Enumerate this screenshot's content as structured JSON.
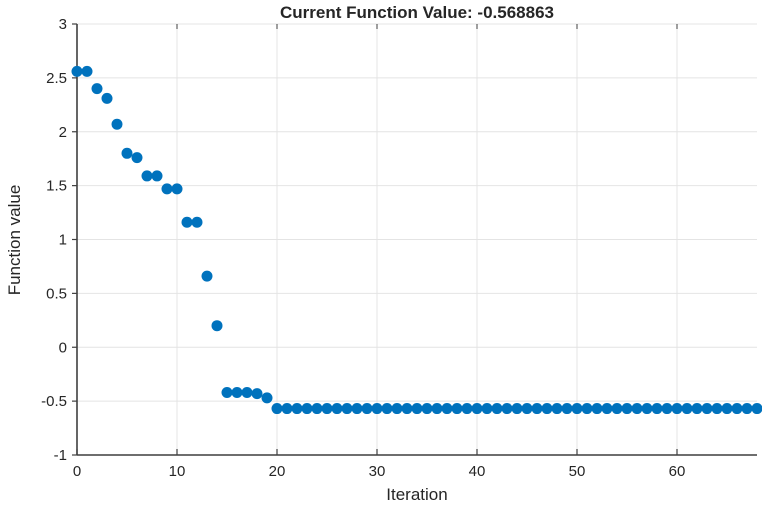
{
  "chart_data": {
    "type": "scatter",
    "title": "Current Function Value: -0.568863",
    "current_function_value": -0.568863,
    "xlabel": "Iteration",
    "ylabel": "Function value",
    "xlim": [
      0,
      68
    ],
    "ylim": [
      -1,
      3
    ],
    "xticks": [
      0,
      10,
      20,
      30,
      40,
      50,
      60
    ],
    "yticks": [
      -1,
      -0.5,
      0,
      0.5,
      1,
      1.5,
      2,
      2.5,
      3
    ],
    "grid": true,
    "legend": "none",
    "marker": {
      "shape": "circle",
      "radius_px": 5.5,
      "color": "#0072BD"
    },
    "colors": {
      "marker": "#0072BD",
      "axis_line": "#3f3f3f",
      "grid_line": "#e4e4e4",
      "text": "#262626",
      "background": "#ffffff"
    },
    "x": [
      0,
      1,
      2,
      3,
      4,
      5,
      6,
      7,
      8,
      9,
      10,
      11,
      12,
      13,
      14,
      15,
      16,
      17,
      18,
      19,
      20,
      21,
      22,
      23,
      24,
      25,
      26,
      27,
      28,
      29,
      30,
      31,
      32,
      33,
      34,
      35,
      36,
      37,
      38,
      39,
      40,
      41,
      42,
      43,
      44,
      45,
      46,
      47,
      48,
      49,
      50,
      51,
      52,
      53,
      54,
      55,
      56,
      57,
      58,
      59,
      60,
      61,
      62,
      63,
      64,
      65,
      66,
      67,
      68
    ],
    "y": [
      2.56,
      2.56,
      2.4,
      2.31,
      2.07,
      1.8,
      1.76,
      1.59,
      1.59,
      1.47,
      1.47,
      1.16,
      1.16,
      0.66,
      0.2,
      -0.42,
      -0.42,
      -0.42,
      -0.43,
      -0.47,
      -0.5689,
      -0.5689,
      -0.5689,
      -0.5689,
      -0.5689,
      -0.5689,
      -0.5689,
      -0.5689,
      -0.5689,
      -0.5689,
      -0.5689,
      -0.5689,
      -0.5689,
      -0.5689,
      -0.5689,
      -0.5689,
      -0.5689,
      -0.5689,
      -0.5689,
      -0.5689,
      -0.5689,
      -0.5689,
      -0.5689,
      -0.5689,
      -0.5689,
      -0.5689,
      -0.5689,
      -0.5689,
      -0.5689,
      -0.5689,
      -0.5689,
      -0.5689,
      -0.5689,
      -0.5689,
      -0.5689,
      -0.5689,
      -0.5689,
      -0.5689,
      -0.5689,
      -0.5689,
      -0.5689,
      -0.5689,
      -0.5689,
      -0.5689,
      -0.5689,
      -0.5689,
      -0.5689,
      -0.5689,
      -0.5689
    ]
  }
}
